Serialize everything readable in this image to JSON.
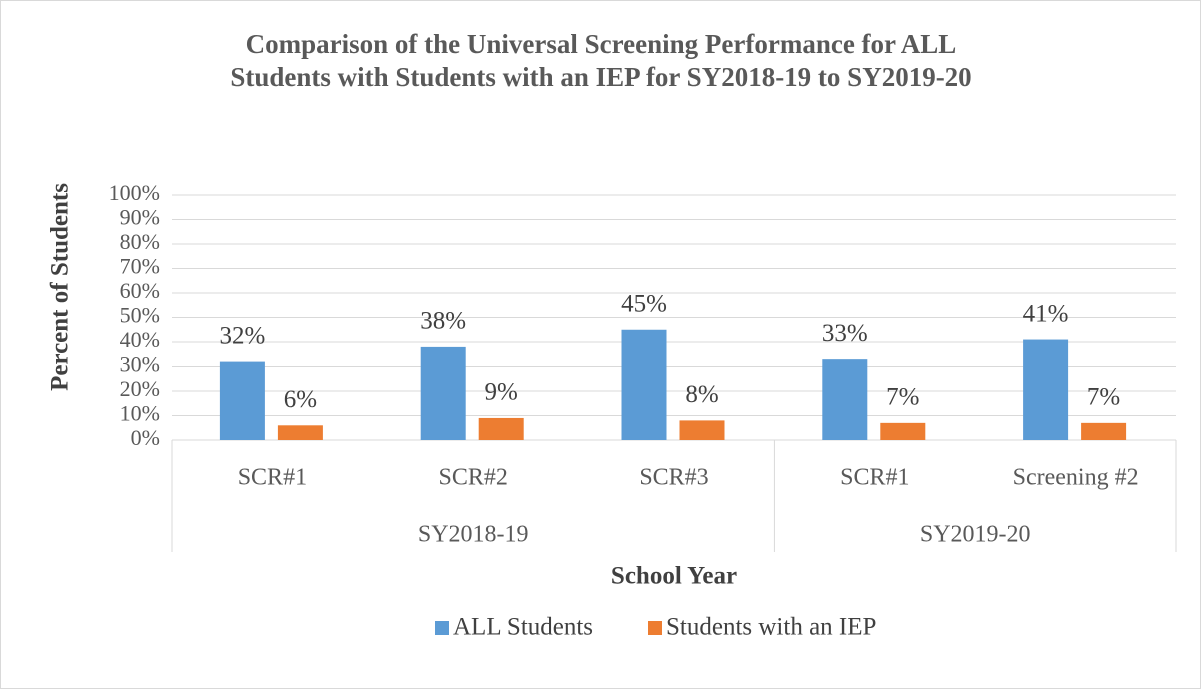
{
  "chart_data": {
    "type": "bar",
    "title": [
      "Comparison of the Universal Screening Performance for ALL",
      "Students with Students with an IEP for SY2018-19 to SY2019-20"
    ],
    "y_label": "Percent of Students",
    "x_label": "School Year",
    "groups": [
      {
        "name": "SY2018-19",
        "categories": [
          "SCR#1",
          "SCR#2",
          "SCR#3"
        ]
      },
      {
        "name": "SY2019-20",
        "categories": [
          "SCR#1",
          "Screening #2"
        ]
      }
    ],
    "series": [
      {
        "name": "ALL Students",
        "color": "#5b9bd5",
        "values": [
          32,
          38,
          45,
          33,
          41
        ],
        "value_labels": [
          "32%",
          "38%",
          "45%",
          "33%",
          "41%"
        ]
      },
      {
        "name": "Students with an IEP",
        "color": "#ed7d31",
        "values": [
          6,
          9,
          8,
          7,
          7
        ],
        "value_labels": [
          "6%",
          "9%",
          "8%",
          "7%",
          "7%"
        ]
      }
    ],
    "ylim": [
      0,
      100
    ],
    "yticks": [
      {
        "value": 0,
        "label": "0%"
      },
      {
        "value": 10,
        "label": "10%"
      },
      {
        "value": 20,
        "label": "20%"
      },
      {
        "value": 30,
        "label": "30%"
      },
      {
        "value": 40,
        "label": "40%"
      },
      {
        "value": 50,
        "label": "50%"
      },
      {
        "value": 60,
        "label": "60%"
      },
      {
        "value": 70,
        "label": "70%"
      },
      {
        "value": 80,
        "label": "80%"
      },
      {
        "value": 90,
        "label": "90%"
      },
      {
        "value": 100,
        "label": "100%"
      }
    ],
    "grid": true,
    "legend": "bottom"
  }
}
